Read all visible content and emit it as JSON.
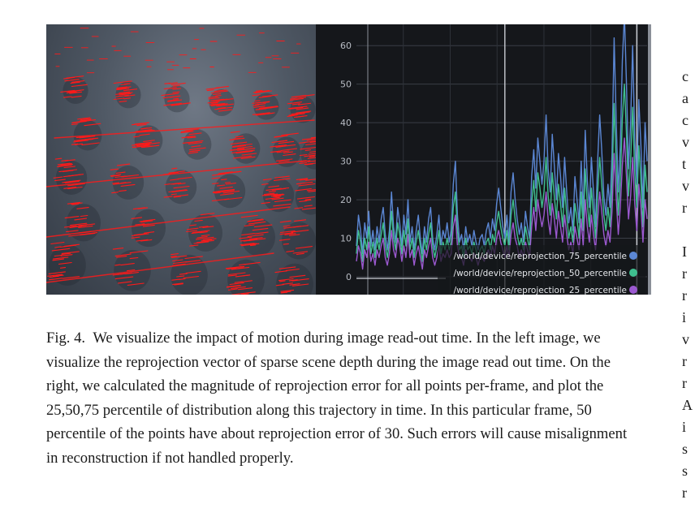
{
  "figure": {
    "caption": {
      "label": "Fig. 4.",
      "text": "We visualize the impact of motion during image read-out time. In the left image, we visualize the reprojection vector of sparse scene depth during the image read out time. On the right, we calculated the magnitude of reprojection error for all points per-frame, and plot the 25,50,75 percentile of distribution along this trajectory in time. In this particular frame, 50 percentile of the points have about reprojection error of 30. Such errors will cause misalignment in reconstruction if not handled properly."
    },
    "left_image": {
      "vector_color": "#ff1a1a",
      "background_color": "#4f5864"
    },
    "background_color": "#15171b"
  },
  "chart_data": {
    "type": "line",
    "title": "",
    "xlabel": "",
    "ylabel": "",
    "ylim": [
      0,
      67
    ],
    "yticks": [
      0,
      10,
      20,
      30,
      40,
      50,
      60
    ],
    "grid": true,
    "legend_position": "bottom-right",
    "background": "#15171b",
    "current_frame_markers": [
      72,
      136
    ],
    "series": [
      {
        "name": "/world/device/reprojection_75_percentile",
        "color": "#5b87d4",
        "values": [
          8,
          16,
          12,
          6,
          14,
          10,
          17,
          8,
          12,
          7,
          13,
          9,
          15,
          18,
          11,
          7,
          12,
          22,
          13,
          9,
          18,
          14,
          8,
          16,
          11,
          20,
          9,
          13,
          7,
          12,
          16,
          10,
          6,
          13,
          9,
          15,
          18,
          10,
          7,
          11,
          16,
          8,
          12,
          10,
          14,
          9,
          12,
          24,
          30,
          16,
          9,
          11,
          7,
          13,
          9,
          11,
          8,
          12,
          9,
          7,
          10,
          11,
          8,
          12,
          14,
          10,
          15,
          12,
          19,
          23,
          18,
          13,
          10,
          16,
          9,
          22,
          27,
          20,
          15,
          11,
          14,
          9,
          17,
          13,
          10,
          26,
          33,
          23,
          36,
          30,
          24,
          30,
          42,
          28,
          22,
          37,
          29,
          20,
          32,
          26,
          18,
          31,
          22,
          14,
          18,
          12,
          26,
          20,
          14,
          30,
          16,
          38,
          25,
          18,
          31,
          22,
          13,
          30,
          42,
          33,
          21,
          16,
          24,
          18,
          32,
          62,
          41,
          22,
          34,
          56,
          68,
          50,
          28,
          40,
          60,
          36,
          24,
          46,
          34,
          18,
          40,
          30
        ]
      },
      {
        "name": "/world/device/reprojection_50_percentile",
        "color": "#3fbf8f",
        "values": [
          6,
          12,
          9,
          4,
          10,
          7,
          13,
          6,
          9,
          5,
          10,
          7,
          11,
          14,
          8,
          5,
          9,
          17,
          10,
          7,
          14,
          11,
          6,
          12,
          8,
          15,
          7,
          10,
          5,
          9,
          12,
          8,
          4,
          10,
          7,
          11,
          14,
          8,
          5,
          8,
          12,
          6,
          9,
          7,
          10,
          7,
          9,
          18,
          22,
          12,
          7,
          8,
          5,
          10,
          7,
          8,
          6,
          9,
          7,
          5,
          7,
          8,
          6,
          9,
          10,
          7,
          11,
          9,
          14,
          17,
          13,
          10,
          8,
          12,
          7,
          16,
          20,
          15,
          11,
          8,
          10,
          7,
          13,
          10,
          7,
          19,
          25,
          17,
          27,
          23,
          18,
          22,
          31,
          21,
          16,
          27,
          21,
          15,
          24,
          19,
          13,
          23,
          16,
          10,
          13,
          9,
          19,
          15,
          10,
          22,
          12,
          28,
          19,
          13,
          23,
          16,
          10,
          22,
          31,
          24,
          16,
          12,
          18,
          13,
          24,
          45,
          30,
          16,
          25,
          41,
          50,
          37,
          21,
          30,
          44,
          27,
          18,
          34,
          25,
          13,
          29,
          22
        ]
      },
      {
        "name": "/world/device/reprojection_25_percentile",
        "color": "#9b59d0",
        "values": [
          4,
          8,
          6,
          2,
          7,
          5,
          9,
          4,
          6,
          3,
          7,
          5,
          8,
          10,
          5,
          3,
          6,
          12,
          7,
          5,
          10,
          8,
          4,
          8,
          5,
          11,
          5,
          7,
          3,
          6,
          8,
          5,
          2,
          7,
          5,
          8,
          10,
          5,
          3,
          5,
          8,
          4,
          6,
          5,
          7,
          5,
          6,
          13,
          16,
          8,
          5,
          5,
          3,
          7,
          5,
          5,
          4,
          6,
          5,
          3,
          5,
          5,
          4,
          6,
          7,
          5,
          8,
          6,
          10,
          12,
          9,
          7,
          5,
          8,
          5,
          11,
          14,
          10,
          8,
          5,
          7,
          5,
          9,
          7,
          5,
          13,
          18,
          12,
          20,
          16,
          13,
          16,
          22,
          15,
          11,
          19,
          15,
          10,
          17,
          13,
          9,
          16,
          11,
          7,
          9,
          6,
          13,
          10,
          7,
          15,
          8,
          20,
          13,
          9,
          16,
          11,
          7,
          15,
          22,
          17,
          11,
          8,
          12,
          9,
          17,
          32,
          21,
          11,
          18,
          29,
          36,
          26,
          15,
          21,
          31,
          19,
          12,
          24,
          18,
          9,
          20,
          15
        ]
      }
    ]
  },
  "right_column_fragments": [
    "c",
    "a",
    "c",
    "v",
    "t",
    "v",
    "r",
    "",
    "I",
    "r",
    "r",
    "i",
    "v",
    "r",
    "r",
    "A",
    "i",
    "s",
    "s",
    "r"
  ]
}
